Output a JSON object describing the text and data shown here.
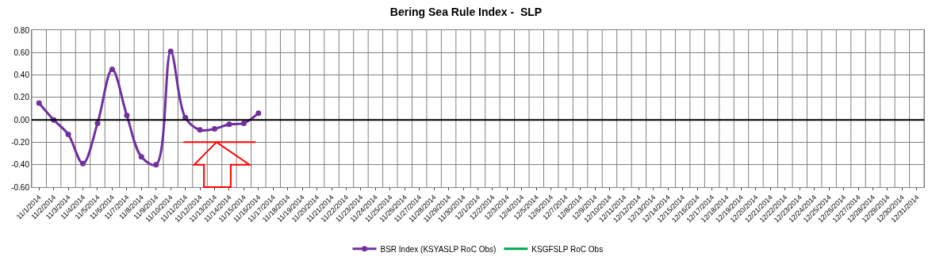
{
  "chart_data": {
    "type": "line",
    "title": "Bering Sea Rule Index -  SLP",
    "categories": [
      "11/1/2014",
      "11/2/2014",
      "11/3/2014",
      "11/4/2014",
      "11/5/2014",
      "11/6/2014",
      "11/7/2014",
      "11/8/2014",
      "11/9/2014",
      "11/10/2014",
      "11/11/2014",
      "11/12/2014",
      "11/13/2014",
      "11/14/2014",
      "11/15/2014",
      "11/16/2014",
      "11/17/2014",
      "11/18/2014",
      "11/19/2014",
      "11/20/2014",
      "11/21/2014",
      "11/22/2014",
      "11/23/2014",
      "11/24/2014",
      "11/25/2014",
      "11/26/2014",
      "11/27/2014",
      "11/28/2014",
      "11/29/2014",
      "11/30/2014",
      "12/1/2014",
      "12/2/2014",
      "12/3/2014",
      "12/4/2014",
      "12/5/2014",
      "12/6/2014",
      "12/7/2014",
      "12/8/2014",
      "12/9/2014",
      "12/10/2014",
      "12/11/2014",
      "12/12/2014",
      "12/13/2014",
      "12/14/2014",
      "12/15/2014",
      "12/16/2014",
      "12/17/2014",
      "12/18/2014",
      "12/19/2014",
      "12/20/2014",
      "12/21/2014",
      "12/22/2014",
      "12/23/2014",
      "12/24/2014",
      "12/25/2014",
      "12/26/2014",
      "12/27/2014",
      "12/28/2014",
      "12/29/2014",
      "12/30/2014",
      "12/31/2014"
    ],
    "series": [
      {
        "name": "BSR Index (KSYASLP RoC Obs)",
        "color": "#7030a0",
        "marker": "circle",
        "values": [
          0.15,
          0.0,
          -0.13,
          -0.39,
          -0.03,
          0.45,
          0.04,
          -0.33,
          -0.4,
          0.61,
          0.02,
          -0.09,
          -0.08,
          -0.04,
          -0.03,
          0.06,
          null,
          null,
          null,
          null,
          null,
          null,
          null,
          null,
          null,
          null,
          null,
          null,
          null,
          null,
          null,
          null,
          null,
          null,
          null,
          null,
          null,
          null,
          null,
          null,
          null,
          null,
          null,
          null,
          null,
          null,
          null,
          null,
          null,
          null,
          null,
          null,
          null,
          null,
          null,
          null,
          null,
          null,
          null,
          null,
          null
        ]
      },
      {
        "name": "KSGFSLP RoC Obs",
        "color": "#00a550",
        "marker": "none",
        "values": [
          null,
          null,
          null,
          null,
          null,
          null,
          null,
          null,
          null,
          null,
          null,
          null,
          null,
          null,
          null,
          null,
          null,
          null,
          null,
          null,
          null,
          null,
          null,
          null,
          null,
          null,
          null,
          null,
          null,
          null,
          null,
          null,
          null,
          null,
          null,
          null,
          null,
          null,
          null,
          null,
          null,
          null,
          null,
          null,
          null,
          null,
          null,
          null,
          null,
          null,
          null,
          null,
          null,
          null,
          null,
          null,
          null,
          null,
          null,
          null,
          null
        ]
      }
    ],
    "ylim": [
      -0.6,
      0.8
    ],
    "yticks": [
      {
        "value": -0.6,
        "label": "-0.60"
      },
      {
        "value": -0.4,
        "label": "-0.40"
      },
      {
        "value": -0.2,
        "label": "-0.20"
      },
      {
        "value": 0,
        "label": "0.00"
      },
      {
        "value": 0.2,
        "label": "0.20"
      },
      {
        "value": 0.4,
        "label": "0.40"
      },
      {
        "value": 0.6,
        "label": "0.60"
      },
      {
        "value": 0.8,
        "label": "0.80"
      }
    ],
    "ref_lines": [
      {
        "axis": "y",
        "value": 0,
        "color": "#000000"
      }
    ],
    "grid": true,
    "legend": "bottom"
  }
}
